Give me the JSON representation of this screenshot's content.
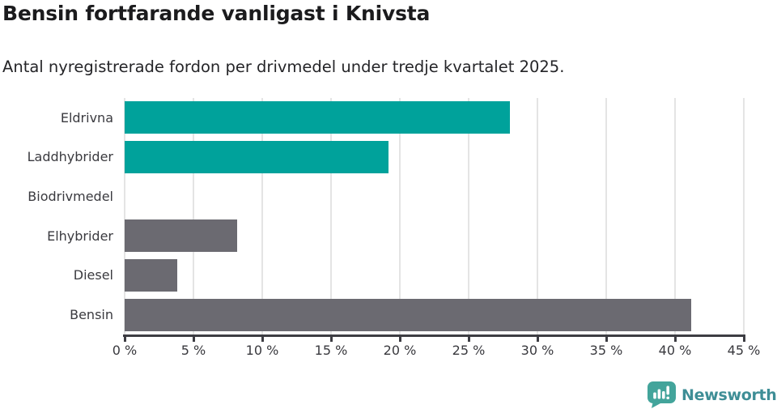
{
  "header": {
    "title": "Bensin fortfarande vanligast i Knivsta",
    "subtitle": "Antal nyregistrerade fordon per drivmedel under tredje kvartalet 2025."
  },
  "chart_data": {
    "type": "bar",
    "orientation": "horizontal",
    "title": "Bensin fortfarande vanligast i Knivsta",
    "subtitle": "Antal nyregistrerade fordon per drivmedel under tredje kvartalet 2025.",
    "categories": [
      "Eldrivna",
      "Laddhybrider",
      "Biodrivmedel",
      "Elhybrider",
      "Diesel",
      "Bensin"
    ],
    "values": [
      28.0,
      19.2,
      0,
      8.2,
      3.8,
      41.2
    ],
    "value_unit": "%",
    "bar_colors": [
      "#00a29b",
      "#00a29b",
      "#6b6a71",
      "#6b6a71",
      "#6b6a71",
      "#6b6a71"
    ],
    "highlight_color": "#00a29b",
    "default_color": "#6b6a71",
    "xlabel": "",
    "ylabel": "",
    "xlim": [
      0,
      45
    ],
    "x_tick_values": [
      0,
      5,
      10,
      15,
      20,
      25,
      30,
      35,
      40,
      45
    ],
    "x_tick_labels": [
      "0 %",
      "5 %",
      "10 %",
      "15 %",
      "20 %",
      "25 %",
      "30 %",
      "35 %",
      "40 %",
      "45 %"
    ],
    "grid": "vertical-only",
    "legend": "none"
  },
  "branding": {
    "wordmark": "Newsworthy",
    "icon": "newsworthy-speech-bubble-bar-chart-icon",
    "icon_color": "#43a49b",
    "wordmark_color": "#3e8e96"
  },
  "colors": {
    "background": "#ffffff",
    "title_text": "#1b1b1d",
    "subtitle_text": "#252528",
    "label_text": "#3a3a3f",
    "axis": "#3d3d43",
    "gridline": "#e4e4e4"
  }
}
